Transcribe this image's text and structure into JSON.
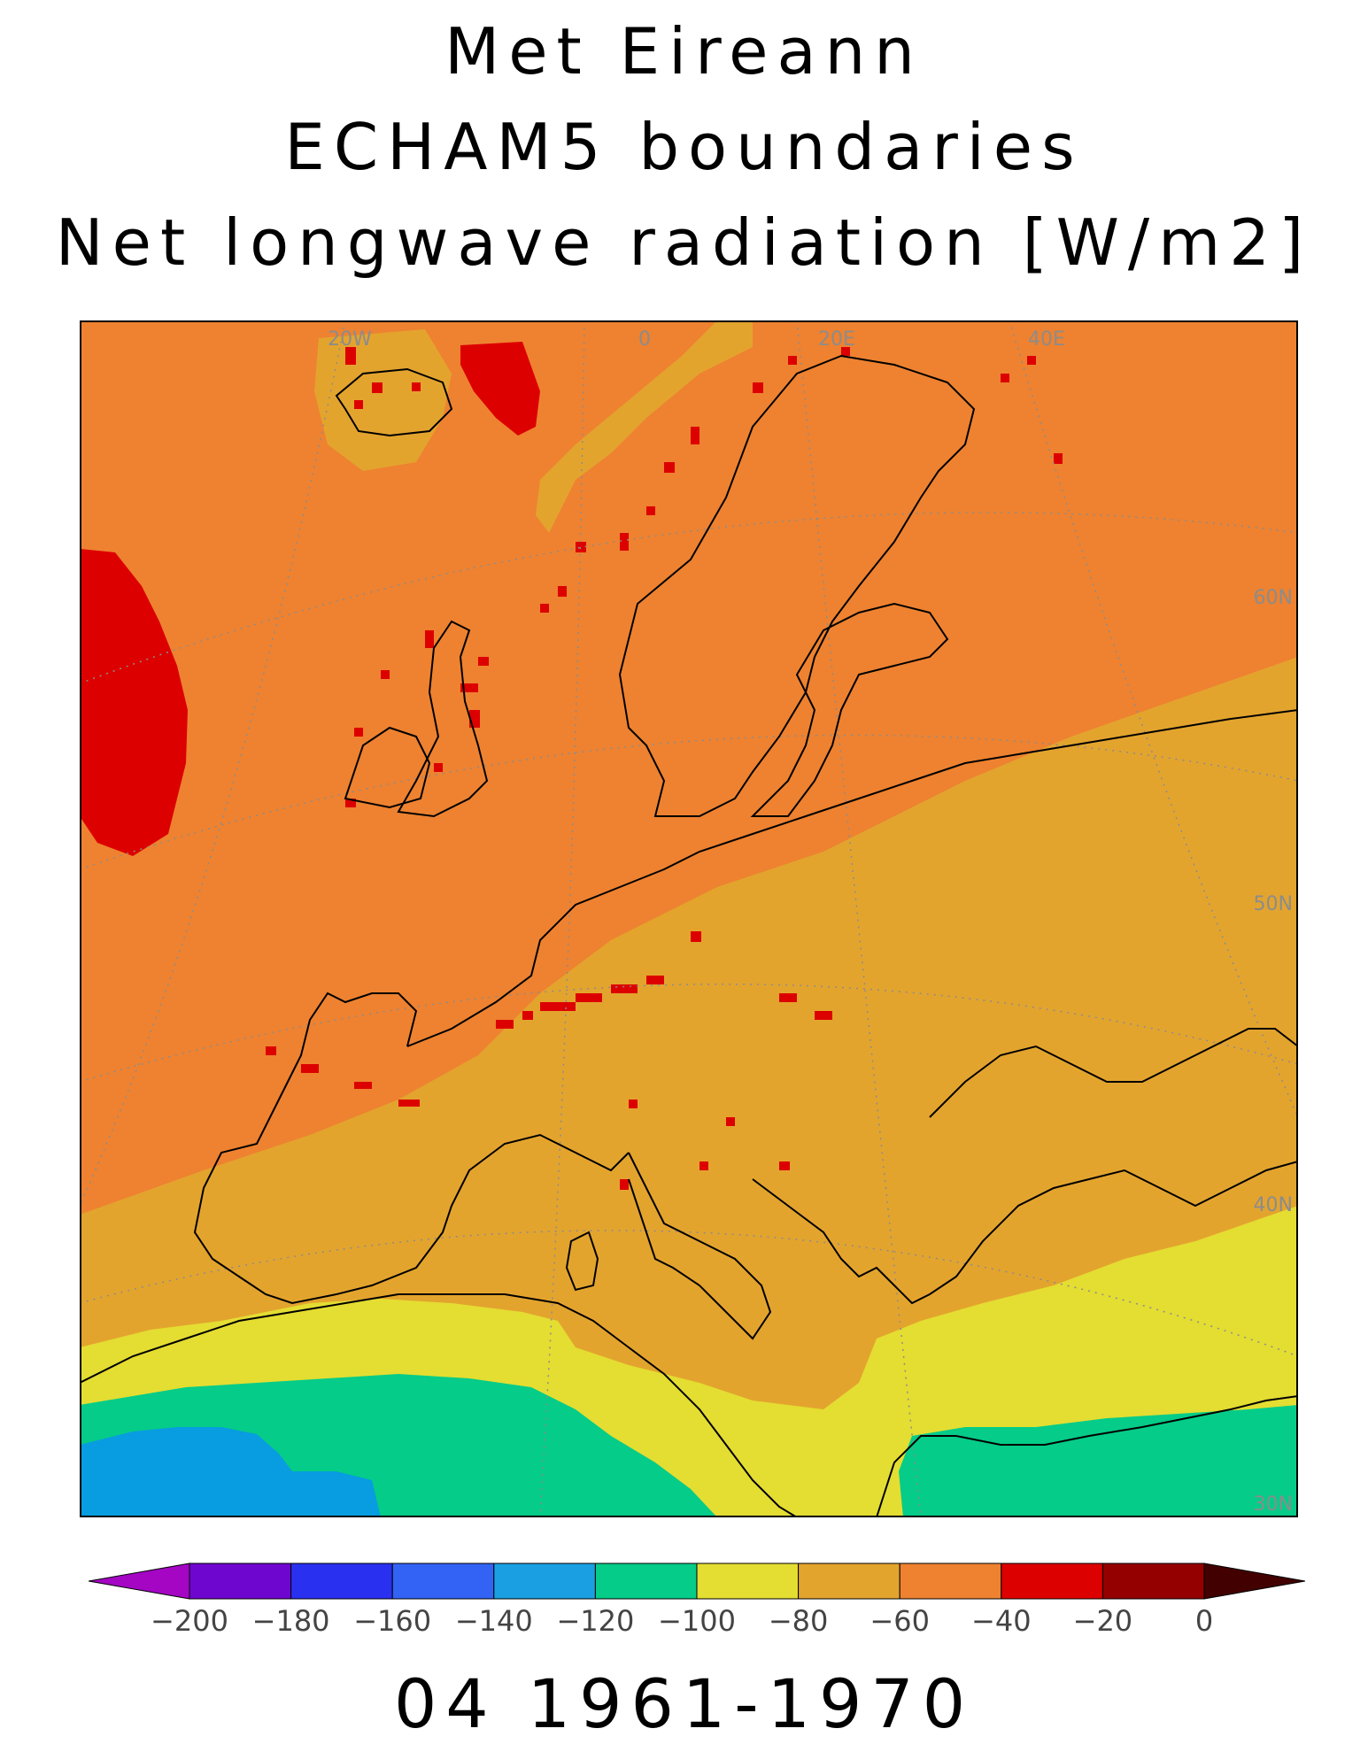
{
  "title": {
    "line1": "Met Eireann",
    "line2": "ECHAM5 boundaries",
    "line3": "Net longwave radiation [W/m2]"
  },
  "period": "04 1961-1970",
  "map": {
    "projection": "polar-stereographic",
    "lon_labels": [
      "20W",
      "0",
      "20E",
      "40E"
    ],
    "lat_labels": [
      "60N",
      "50N",
      "40N",
      "30N"
    ],
    "colors": {
      "ocean_north": "#ee8230",
      "land_mid": "#e3a42e",
      "yellow": "#e4dd32",
      "green": "#05cc88",
      "cyan": "#079de0",
      "red": "#dd0000",
      "coastline": "#000000",
      "graticule": "#8c8c8c"
    }
  },
  "colorbar": {
    "labels": [
      "-200",
      "-180",
      "-160",
      "-140",
      "-120",
      "-100",
      "-80",
      "-60",
      "-40",
      "-20",
      "0"
    ],
    "colors": [
      "#a406c4",
      "#6f06d0",
      "#2a30f0",
      "#3363f5",
      "#1aa0e2",
      "#05cc88",
      "#e4dd32",
      "#e3a42e",
      "#ee8230",
      "#dd0000",
      "#940000",
      "#420000"
    ]
  }
}
